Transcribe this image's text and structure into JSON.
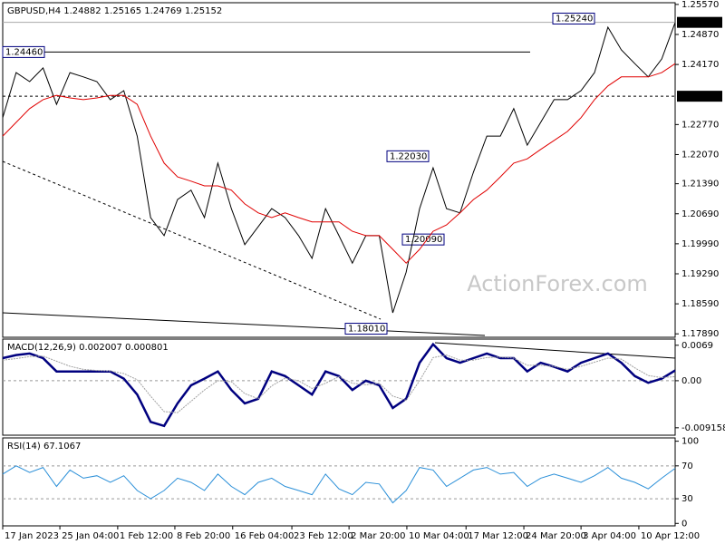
{
  "chart_data": [
    {
      "type": "line",
      "title": "GBPUSD,H4  1.24882 1.25165 1.24769 1.25152",
      "watermark": "ActionForex.com",
      "x": [
        0,
        2,
        4,
        6,
        8,
        10,
        12,
        14,
        16,
        18,
        20,
        22,
        24,
        26,
        28,
        30,
        32,
        34,
        36,
        38,
        40,
        42,
        44,
        46,
        48,
        50,
        52,
        54,
        56,
        58,
        60,
        62,
        64,
        66,
        68,
        70,
        72,
        74,
        76,
        78,
        80,
        82,
        84,
        86,
        88,
        90,
        92,
        94,
        96,
        98,
        100
      ],
      "xlim": [
        0,
        100
      ],
      "ylim": [
        1.1781,
        1.2561
      ],
      "yticks": [
        {
          "value": 1.2557,
          "label": "1.25570"
        },
        {
          "value": 1.2487,
          "label": "1.24870"
        },
        {
          "value": 1.2417,
          "label": "1.24170"
        },
        {
          "value": 1.2277,
          "label": "1.22770"
        },
        {
          "value": 1.2207,
          "label": "1.22070"
        },
        {
          "value": 1.2139,
          "label": "1.21390"
        },
        {
          "value": 1.2069,
          "label": "1.20690"
        },
        {
          "value": 1.1999,
          "label": "1.19990"
        },
        {
          "value": 1.1929,
          "label": "1.19290"
        },
        {
          "value": 1.1859,
          "label": "1.18590"
        },
        {
          "value": 1.1789,
          "label": "1.17890"
        }
      ],
      "price_markers": [
        1.25152,
        {
          "value": 1.2343,
          "label": "1.23430"
        }
      ],
      "annotations": [
        {
          "value": 1.2446,
          "label": "1.24460"
        },
        {
          "value": 1.2524,
          "label": "1.25240"
        },
        {
          "value": 1.2203,
          "label": "1.22030"
        },
        {
          "value": 1.2009,
          "label": "1.20090"
        },
        {
          "value": 1.1801,
          "label": "1.18010"
        }
      ],
      "series": [
        {
          "color": "#000000",
          "values": [
            1.2293,
            1.2398,
            1.2377,
            1.2409,
            1.2324,
            1.2398,
            1.2388,
            1.2377,
            1.2335,
            1.2356,
            1.225,
            1.206,
            1.2018,
            1.2102,
            1.2124,
            1.206,
            1.2187,
            1.2081,
            1.1997,
            1.2039,
            1.2081,
            1.206,
            1.2018,
            1.1965,
            1.2081,
            1.2018,
            1.1954,
            1.2018,
            1.2018,
            1.1838,
            1.1933,
            1.2081,
            1.2176,
            1.2081,
            1.2071,
            1.2166,
            1.225,
            1.225,
            1.2314,
            1.2229,
            1.2282,
            1.2335,
            1.2335,
            1.2356,
            1.2398,
            1.2504,
            1.2451,
            1.2419,
            1.2388,
            1.243,
            1.2515
          ]
        },
        {
          "color": "#e00000",
          "values": [
            1.225,
            1.2282,
            1.2314,
            1.2335,
            1.2345,
            1.2339,
            1.2335,
            1.2339,
            1.2345,
            1.2345,
            1.2324,
            1.225,
            1.2187,
            1.2155,
            1.2145,
            1.2134,
            1.2134,
            1.2124,
            1.2092,
            1.2071,
            1.206,
            1.2071,
            1.206,
            1.205,
            1.205,
            1.205,
            1.2028,
            1.2018,
            1.2018,
            1.1986,
            1.1954,
            1.1986,
            1.2028,
            1.2043,
            1.2071,
            1.2102,
            1.2124,
            1.2155,
            1.2187,
            1.2197,
            1.2219,
            1.224,
            1.2261,
            1.2293,
            1.2335,
            1.2367,
            1.2388,
            1.2388,
            1.2388,
            1.2398,
            1.2419
          ]
        }
      ]
    },
    {
      "type": "line",
      "title": "MACD(12,26,9) 0.002007 0.000801",
      "ylim": [
        -0.0106,
        0.0081
      ],
      "yticks": [
        0.0069,
        {
          "value": 0,
          "label": "0.00"
        },
        -0.009158
      ],
      "series": [
        {
          "color": "#00007f",
          "values": [
            0.0044,
            0.005,
            0.0053,
            0.0044,
            0.0018,
            0.0018,
            0.0018,
            0.0018,
            0.0018,
            0.0004,
            -0.0027,
            -0.008,
            -0.0088,
            -0.0044,
            -0.0009,
            0.0004,
            0.0018,
            -0.0018,
            -0.0044,
            -0.0035,
            0.0018,
            0.0009,
            -0.0009,
            -0.0027,
            0.0018,
            0.0009,
            -0.0018,
            0,
            -0.0009,
            -0.0053,
            -0.0035,
            0.0035,
            0.0071,
            0.0044,
            0.0035,
            0.0044,
            0.0053,
            0.0044,
            0.0044,
            0.0018,
            0.0035,
            0.0027,
            0.0018,
            0.0035,
            0.0044,
            0.0053,
            0.0035,
            0.0009,
            -0.0004,
            0.0004,
            0.002
          ]
        },
        {
          "color": "#a0a0a0",
          "values": [
            0.004,
            0.0043,
            0.0047,
            0.0048,
            0.0038,
            0.0028,
            0.0022,
            0.002,
            0.0019,
            0.0014,
            0.0002,
            -0.003,
            -0.006,
            -0.0062,
            -0.004,
            -0.0018,
            0,
            -0.0002,
            -0.0025,
            -0.0035,
            -0.001,
            0.0005,
            0,
            -0.0015,
            -0.0005,
            0.0008,
            -0.0005,
            -0.0008,
            -0.0005,
            -0.003,
            -0.0038,
            0,
            0.0045,
            0.005,
            0.004,
            0.004,
            0.0045,
            0.0046,
            0.0044,
            0.003,
            0.003,
            0.0028,
            0.0022,
            0.0028,
            0.0036,
            0.0044,
            0.0042,
            0.0025,
            0.001,
            0.0006,
            0.0008
          ]
        }
      ]
    },
    {
      "type": "line",
      "title": "RSI(14) 67.1067",
      "ylim": [
        -3,
        104
      ],
      "yticks": [
        100,
        70,
        30,
        0
      ],
      "levels": [
        70,
        30
      ],
      "xticks": [
        {
          "value": 0,
          "label": "17 Jan 2023"
        },
        {
          "value": 8.5,
          "label": "25 Jan 04:00"
        },
        {
          "value": 17.1,
          "label": "1 Feb 12:00"
        },
        {
          "value": 25.6,
          "label": "8 Feb 20:00"
        },
        {
          "value": 34.2,
          "label": "16 Feb 04:00"
        },
        {
          "value": 43.0,
          "label": "23 Feb 12:00"
        },
        {
          "value": 51.5,
          "label": "2 Mar 20:00"
        },
        {
          "value": 60.1,
          "label": "10 Mar 04:00"
        },
        {
          "value": 68.9,
          "label": "17 Mar 12:00"
        },
        {
          "value": 77.5,
          "label": "24 Mar 20:00"
        },
        {
          "value": 86.0,
          "label": "3 Apr 04:00"
        },
        {
          "value": 94.6,
          "label": "10 Apr 12:00"
        }
      ],
      "series": [
        {
          "color": "#2a8fd8",
          "values": [
            60,
            70,
            62,
            68,
            45,
            65,
            55,
            58,
            50,
            58,
            40,
            30,
            40,
            55,
            50,
            40,
            60,
            45,
            35,
            50,
            55,
            45,
            40,
            35,
            60,
            42,
            35,
            50,
            48,
            25,
            40,
            68,
            65,
            45,
            55,
            65,
            68,
            60,
            62,
            45,
            55,
            60,
            55,
            50,
            58,
            68,
            55,
            50,
            42,
            55,
            67
          ]
        }
      ]
    }
  ]
}
